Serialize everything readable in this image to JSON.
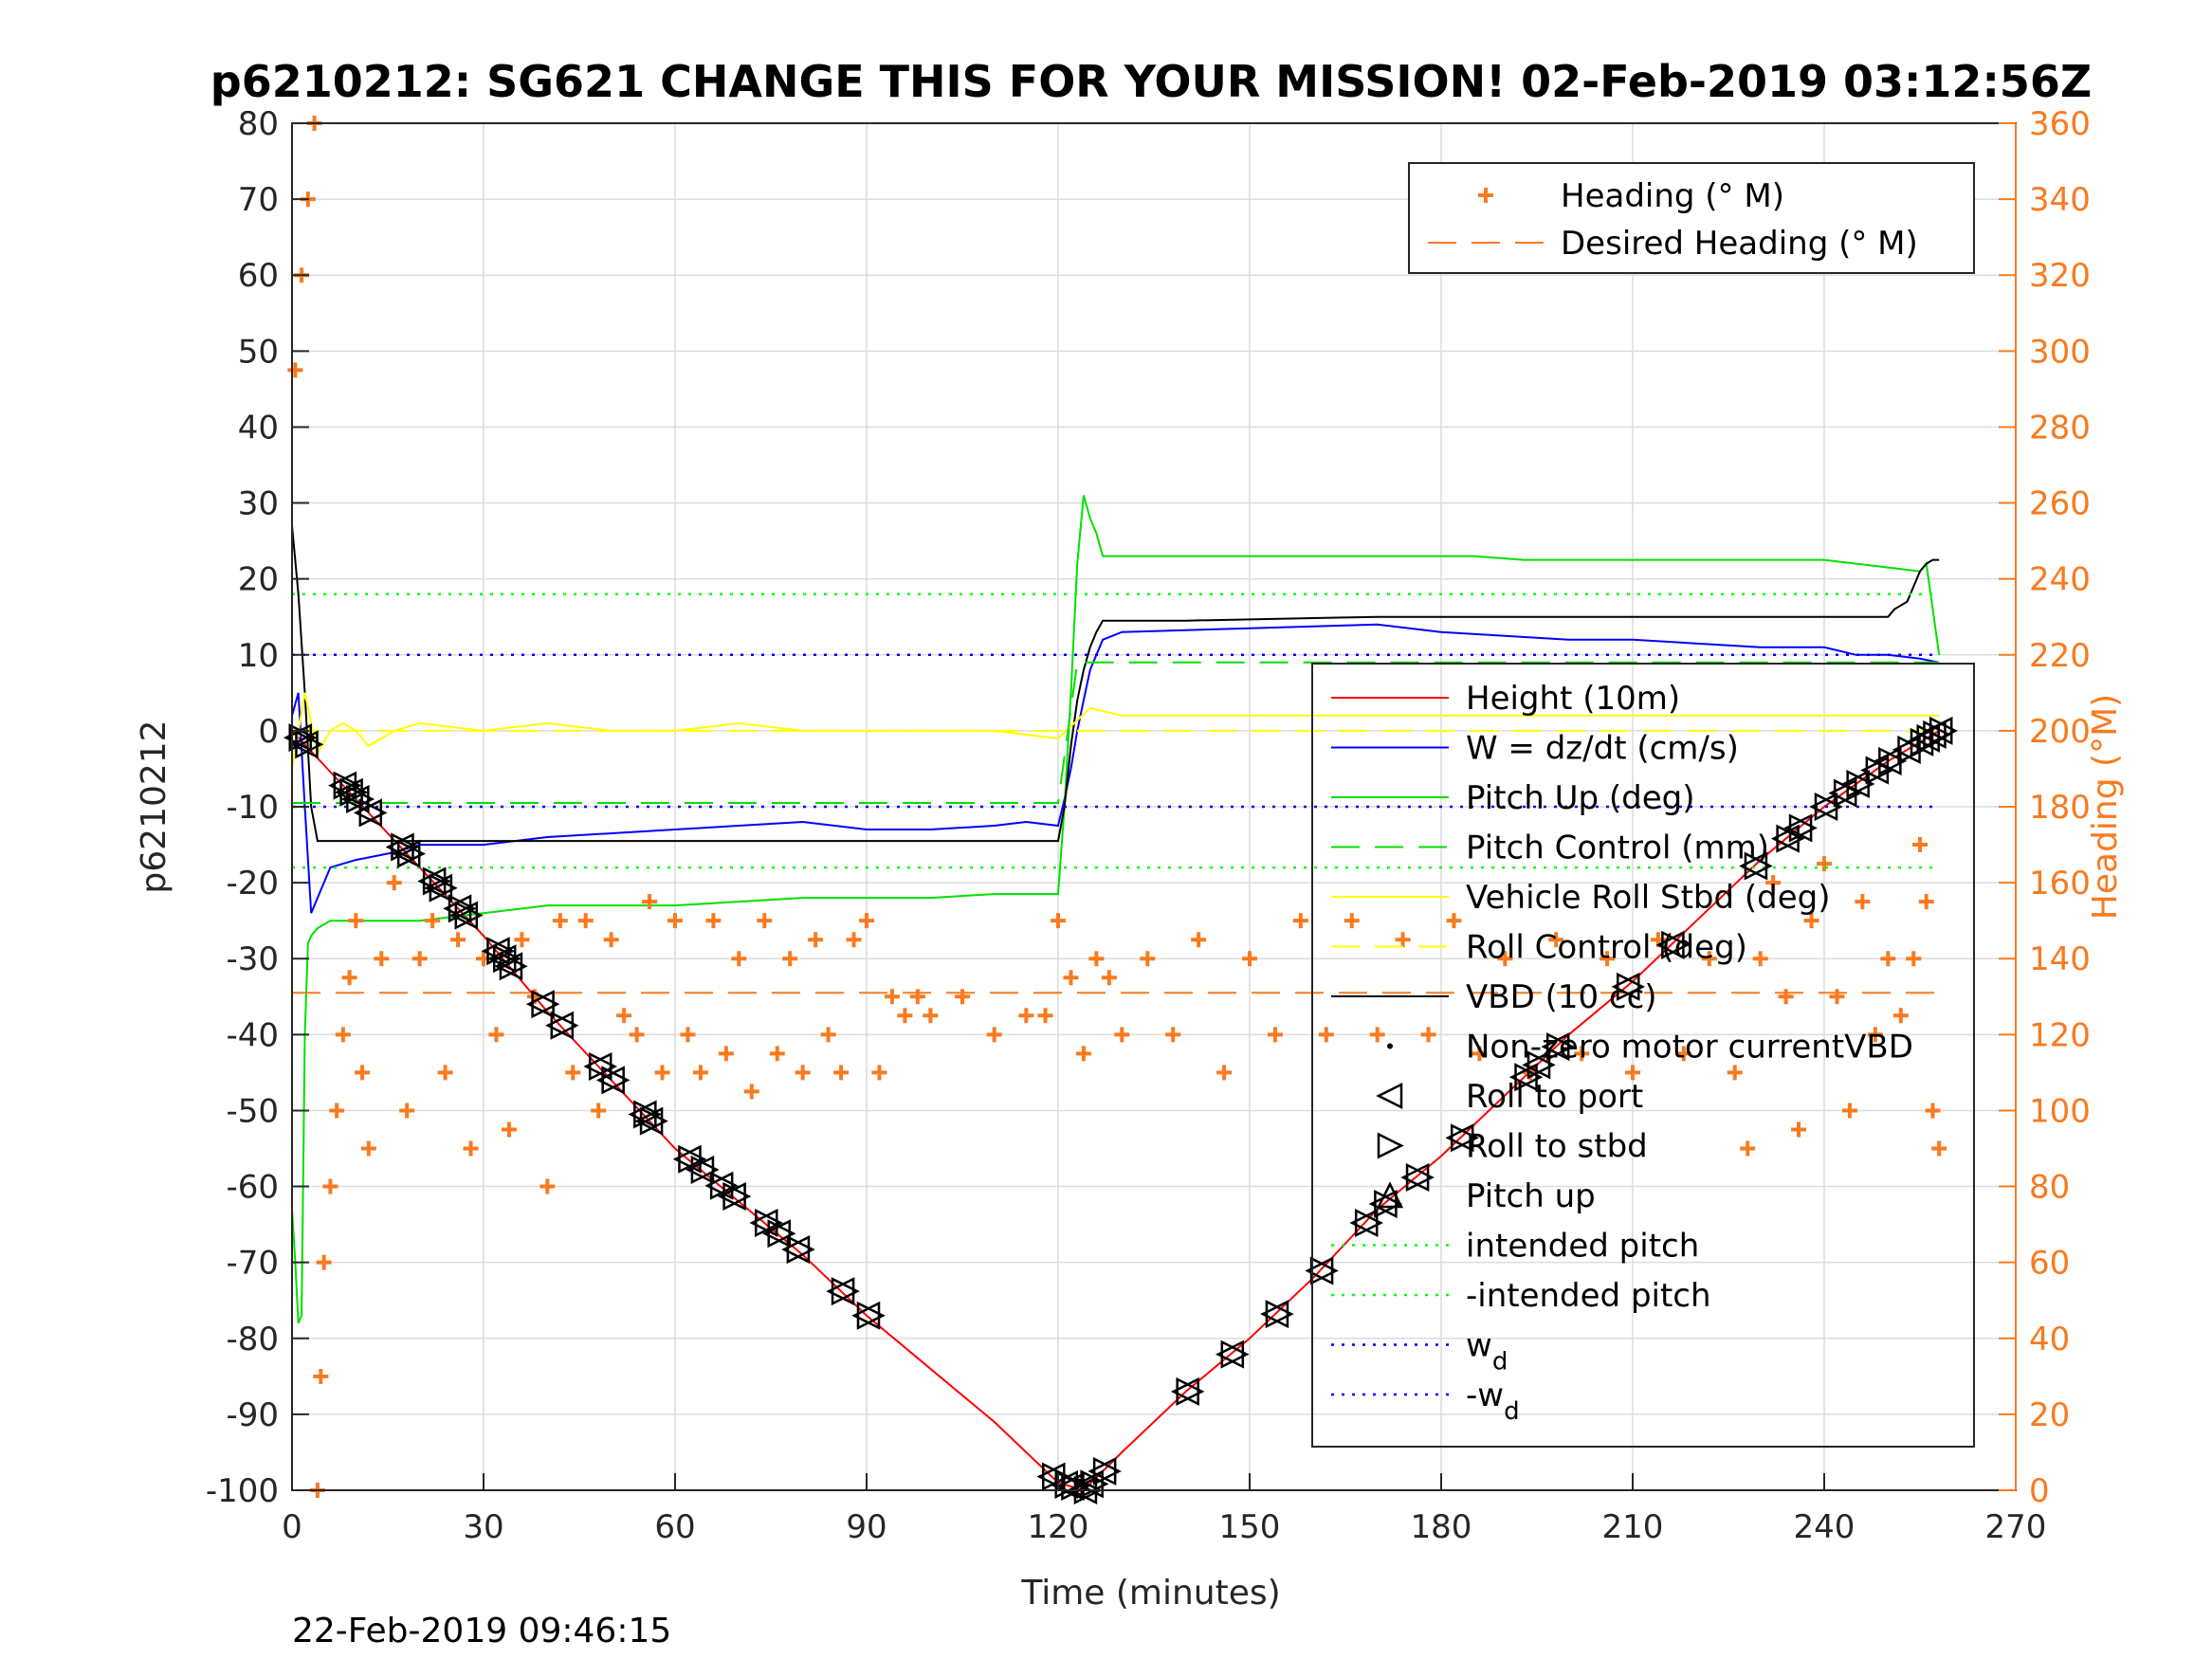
{
  "chart_data": {
    "type": "line",
    "title": "p6210212: SG621 CHANGE THIS FOR YOUR MISSION! 02-Feb-2019 03:12:56Z",
    "xlabel": "Time (minutes)",
    "ylabel_left": "p6210212",
    "ylabel_right": "Heading (°M)",
    "footer_timestamp": "22-Feb-2019 09:46:15",
    "xlim": [
      0,
      270
    ],
    "ylim_left": [
      -100,
      80
    ],
    "ylim_right": [
      0,
      360
    ],
    "x_ticks": [
      "0",
      "30",
      "60",
      "90",
      "120",
      "150",
      "180",
      "210",
      "240",
      "270"
    ],
    "y_left_ticks": [
      "80",
      "70",
      "60",
      "50",
      "40",
      "30",
      "20",
      "10",
      "0",
      "-10",
      "-20",
      "-30",
      "-40",
      "-50",
      "-60",
      "-70",
      "-80",
      "-90",
      "-100"
    ],
    "y_right_ticks": [
      "360",
      "340",
      "320",
      "300",
      "280",
      "260",
      "240",
      "220",
      "200",
      "180",
      "160",
      "140",
      "120",
      "100",
      "80",
      "60",
      "40",
      "20",
      "0"
    ],
    "grid": true,
    "legend_right_axis": [
      {
        "label": "Heading (° M)",
        "color": "#f97a1f",
        "style": "plus-marker"
      },
      {
        "label": "Desired Heading (° M)",
        "color": "#f97a1f",
        "style": "dashed"
      }
    ],
    "legend_left_axis": [
      {
        "label": "Height (10m)",
        "color": "#ff0000",
        "style": "solid"
      },
      {
        "label": "W = dz/dt (cm/s)",
        "color": "#0000ff",
        "style": "solid"
      },
      {
        "label": "Pitch Up (deg)",
        "color": "#00e000",
        "style": "solid"
      },
      {
        "label": "Pitch Control (mm)",
        "color": "#00e000",
        "style": "dashed"
      },
      {
        "label": "Vehicle Roll Stbd (deg)",
        "color": "#ffff00",
        "style": "solid"
      },
      {
        "label": "Roll Control (deg)",
        "color": "#ffff00",
        "style": "dashed"
      },
      {
        "label": "VBD (10 cc)",
        "color": "#000000",
        "style": "solid"
      },
      {
        "label": "Non-zero motor currentVBD",
        "color": "#000000",
        "style": "dot"
      },
      {
        "label": "Roll to port",
        "color": "#000000",
        "style": "triangle-left"
      },
      {
        "label": "Roll to stbd",
        "color": "#000000",
        "style": "triangle-right"
      },
      {
        "label": "Pitch up",
        "color": "#000000",
        "style": "triangle-up"
      },
      {
        "label": "intended pitch",
        "color": "#00ff00",
        "style": "dotted"
      },
      {
        "label": "-intended pitch",
        "color": "#00ff00",
        "style": "dotted"
      },
      {
        "label": "w",
        "sub": "d",
        "color": "#0000ff",
        "style": "dotted"
      },
      {
        "label": "-w",
        "sub": "d",
        "color": "#0000ff",
        "style": "dotted"
      }
    ],
    "series": [
      {
        "name": "Height (10m)",
        "axis": "left",
        "color": "#ff0000",
        "x": [
          0,
          10,
          20,
          30,
          40,
          50,
          60,
          70,
          80,
          90,
          100,
          110,
          120,
          124,
          130,
          140,
          150,
          160,
          170,
          180,
          190,
          200,
          210,
          220,
          230,
          240,
          250,
          258
        ],
        "y": [
          0,
          -9,
          -18,
          -27,
          -37,
          -46,
          -55,
          -62,
          -69,
          -77,
          -84,
          -91,
          -99,
          -100,
          -95,
          -87,
          -80,
          -72,
          -63,
          -56,
          -48,
          -40,
          -33,
          -25,
          -17,
          -10,
          -4,
          0
        ]
      },
      {
        "name": "W = dz/dt (cm/s)",
        "axis": "left",
        "color": "#0000ff",
        "x": [
          0,
          1,
          2,
          3,
          4,
          6,
          10,
          16,
          20,
          30,
          40,
          60,
          80,
          90,
          100,
          110,
          115,
          120,
          121,
          122,
          123,
          124,
          125,
          127,
          130,
          150,
          170,
          180,
          190,
          200,
          210,
          230,
          240,
          245,
          250,
          255,
          258
        ],
        "y": [
          2,
          5,
          -10,
          -24,
          -22,
          -18,
          -17,
          -16,
          -15,
          -15,
          -14,
          -13,
          -12,
          -13,
          -13,
          -12.5,
          -12,
          -12.5,
          -9,
          -5,
          0,
          4,
          8,
          12,
          13,
          13.5,
          14,
          13,
          12.5,
          12,
          12,
          11,
          11,
          10,
          10,
          9.5,
          9
        ]
      },
      {
        "name": "Pitch Up (deg)",
        "axis": "left",
        "color": "#00e000",
        "x": [
          0,
          0.5,
          1,
          1.5,
          2,
          2.5,
          3,
          4,
          6,
          10,
          20,
          30,
          40,
          60,
          70,
          80,
          90,
          100,
          110,
          120,
          121,
          122,
          123,
          124,
          125,
          126,
          127,
          130,
          150,
          170,
          185,
          193,
          200,
          220,
          240,
          250,
          255,
          256,
          257,
          258
        ],
        "y": [
          -63,
          -70,
          -78,
          -77,
          -40,
          -28,
          -27,
          -26,
          -25,
          -25,
          -25,
          -24,
          -23,
          -23,
          -22.5,
          -22,
          -22,
          -22,
          -21.5,
          -21.5,
          -10,
          5,
          22,
          31,
          28,
          26,
          23,
          23,
          23,
          23,
          23,
          22.5,
          22.5,
          22.5,
          22.5,
          21.5,
          21,
          22,
          16,
          10
        ]
      },
      {
        "name": "VBD (10 cc)",
        "axis": "left",
        "color": "#000000",
        "x": [
          0,
          1,
          2,
          3,
          4,
          20,
          60,
          90,
          120,
          121,
          122,
          123,
          124,
          125,
          126,
          127,
          128,
          140,
          170,
          190,
          210,
          230,
          250,
          251,
          253,
          255,
          256,
          257,
          258
        ],
        "y": [
          27,
          18,
          5,
          -10,
          -14.5,
          -14.5,
          -14.5,
          -14.5,
          -14.5,
          -10,
          -2,
          4,
          8,
          11,
          13,
          14.5,
          14.5,
          14.5,
          15,
          15,
          15,
          15,
          15,
          16,
          17,
          21,
          22,
          22.5,
          22.5
        ]
      },
      {
        "name": "Vehicle Roll Stbd (deg)",
        "axis": "left",
        "color": "#ffff00",
        "x": [
          0,
          2,
          4,
          6,
          8,
          10,
          12,
          16,
          20,
          30,
          40,
          50,
          60,
          70,
          80,
          90,
          100,
          110,
          120,
          125,
          130,
          150,
          170,
          190,
          210,
          230,
          250,
          258
        ],
        "y": [
          -5,
          5,
          -3,
          0,
          1,
          0,
          -2,
          0,
          1,
          0,
          1,
          0,
          0,
          1,
          0,
          0,
          0,
          0,
          -1,
          3,
          2,
          2,
          2,
          2,
          2,
          2,
          2,
          2
        ]
      },
      {
        "name": "Roll Control (deg)",
        "axis": "left",
        "color": "#ffff00",
        "style": "dashed",
        "x": [
          0,
          258
        ],
        "y": [
          0,
          0
        ]
      },
      {
        "name": "Pitch Control (mm)",
        "axis": "left",
        "color": "#00e000",
        "style": "dashed",
        "x": [
          0,
          120,
          123,
          258
        ],
        "y": [
          -9.5,
          -9.5,
          9,
          9
        ]
      },
      {
        "name": "Heading (° M)",
        "axis": "right",
        "color": "#f97a1f",
        "style": "plus-marker",
        "x": [
          0.5,
          1.5,
          2.5,
          3.5,
          4,
          4.5,
          5,
          6,
          7,
          8,
          9,
          10,
          11,
          12,
          14,
          16,
          18,
          20,
          22,
          24,
          26,
          28,
          30,
          32,
          34,
          36,
          38,
          40,
          42,
          44,
          46,
          48,
          50,
          52,
          54,
          56,
          58,
          60,
          62,
          64,
          66,
          68,
          70,
          72,
          74,
          76,
          78,
          80,
          82,
          84,
          86,
          88,
          90,
          92,
          94,
          96,
          98,
          100,
          105,
          110,
          115,
          118,
          120,
          122,
          124,
          126,
          128,
          130,
          134,
          138,
          142,
          146,
          150,
          154,
          158,
          162,
          166,
          170,
          174,
          178,
          182,
          186,
          190,
          194,
          198,
          202,
          206,
          210,
          214,
          218,
          222,
          226,
          228,
          230,
          232,
          234,
          236,
          238,
          240,
          242,
          244,
          246,
          248,
          250,
          252,
          254,
          255,
          256,
          257,
          258
        ],
        "y": [
          295,
          320,
          340,
          360,
          0,
          30,
          60,
          80,
          100,
          120,
          135,
          150,
          110,
          90,
          140,
          160,
          100,
          140,
          150,
          110,
          145,
          90,
          140,
          120,
          95,
          145,
          130,
          80,
          150,
          110,
          150,
          100,
          145,
          125,
          120,
          155,
          110,
          150,
          120,
          110,
          150,
          115,
          140,
          105,
          150,
          115,
          140,
          110,
          145,
          120,
          110,
          145,
          150,
          110,
          130,
          125,
          130,
          125,
          130,
          120,
          125,
          125,
          150,
          135,
          115,
          140,
          135,
          120,
          140,
          120,
          145,
          110,
          140,
          120,
          150,
          120,
          150,
          120,
          145,
          120,
          150,
          115,
          140,
          110,
          145,
          115,
          140,
          110,
          145,
          115,
          140,
          110,
          90,
          140,
          160,
          130,
          95,
          150,
          165,
          130,
          100,
          155,
          120,
          140,
          125,
          140,
          170,
          155,
          100,
          90
        ]
      },
      {
        "name": "Desired Heading (° M)",
        "axis": "right",
        "color": "#f97a1f",
        "style": "dashed",
        "x": [
          0,
          258
        ],
        "y": [
          131,
          131
        ]
      },
      {
        "name": "intended pitch",
        "axis": "left",
        "color": "#00ff00",
        "style": "dotted",
        "x": [
          0,
          258
        ],
        "y": [
          18,
          18
        ]
      },
      {
        "name": "-intended pitch",
        "axis": "left",
        "color": "#00ff00",
        "style": "dotted",
        "x": [
          0,
          258
        ],
        "y": [
          -18,
          -18
        ]
      },
      {
        "name": "w_d",
        "axis": "left",
        "color": "#0000ff",
        "style": "dotted",
        "x": [
          0,
          258
        ],
        "y": [
          10,
          10
        ]
      },
      {
        "name": "-w_d",
        "axis": "left",
        "color": "#0000ff",
        "style": "dotted",
        "x": [
          0,
          258
        ],
        "y": [
          -10,
          -10
        ]
      }
    ],
    "roll_markers_x": [
      1,
      2,
      8,
      9,
      10,
      12,
      17,
      18,
      22,
      23,
      26,
      27,
      32,
      33,
      34,
      39,
      42,
      48,
      50,
      55,
      56,
      62,
      64,
      67,
      69,
      74,
      76,
      79,
      86,
      90,
      119,
      121,
      122,
      124,
      125,
      127,
      140,
      147,
      154,
      161,
      168,
      171,
      176,
      183,
      193,
      195,
      198,
      209,
      216,
      229,
      234,
      236,
      240,
      243,
      245,
      248,
      250,
      253,
      255,
      256,
      257,
      258
    ]
  }
}
